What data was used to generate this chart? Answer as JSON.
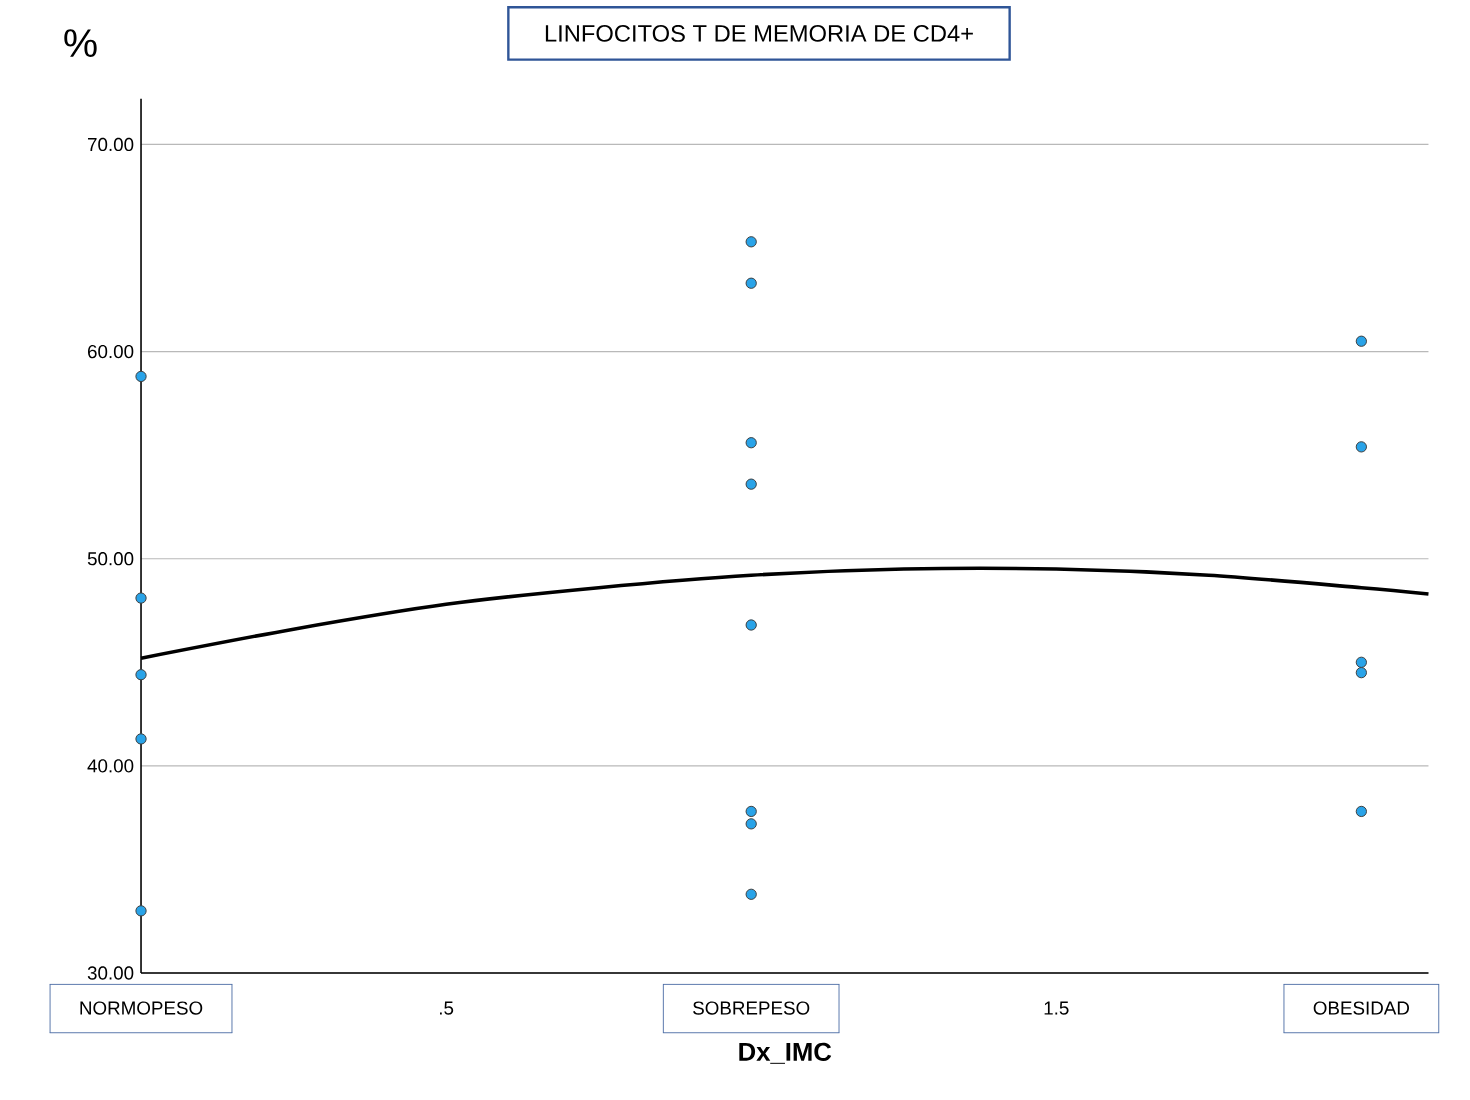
{
  "chart_data": {
    "type": "scatter",
    "title": "LINFOCITOS T DE MEMORIA DE CD4+",
    "xlabel": "Dx_IMC",
    "ylabel": "%",
    "xlim": [
      0,
      2.11
    ],
    "ylim": [
      30,
      72.2
    ],
    "xticks": [
      {
        "value": 0,
        "label": "NORMOPESO"
      },
      {
        "value": 0.5,
        "label": ".5"
      },
      {
        "value": 1,
        "label": "SOBREPESO"
      },
      1.5,
      {
        "value": 2,
        "label": "OBESIDAD"
      }
    ],
    "yticks": [
      {
        "value": 30,
        "label": "30.00"
      },
      {
        "value": 40,
        "label": "40.00"
      },
      {
        "value": 50,
        "label": "50.00"
      },
      {
        "value": 60,
        "label": "60.00"
      },
      {
        "value": 70,
        "label": "70.00"
      }
    ],
    "grid": "y",
    "series": [
      {
        "color": "#29a3e8",
        "marker": "circle",
        "x": [
          0,
          0,
          0,
          0,
          0,
          1,
          1,
          1,
          1,
          1,
          1,
          1,
          1,
          2,
          2,
          2,
          2,
          2
        ],
        "values": [
          58.8,
          48.1,
          44.4,
          41.3,
          33.0,
          65.3,
          63.3,
          55.6,
          53.6,
          46.8,
          37.8,
          37.2,
          33.8,
          60.5,
          55.4,
          45.0,
          44.5,
          37.8
        ]
      },
      {
        "type": "line",
        "color": "#000000",
        "marker": "none",
        "line_style": "solid",
        "x": [
          0,
          0.25,
          0.5,
          0.75,
          1,
          1.25,
          1.5,
          1.75,
          2,
          2.11
        ],
        "values": [
          45.2,
          46.6,
          47.8,
          48.6,
          49.2,
          49.5,
          49.5,
          49.2,
          48.6,
          48.3
        ]
      }
    ]
  }
}
